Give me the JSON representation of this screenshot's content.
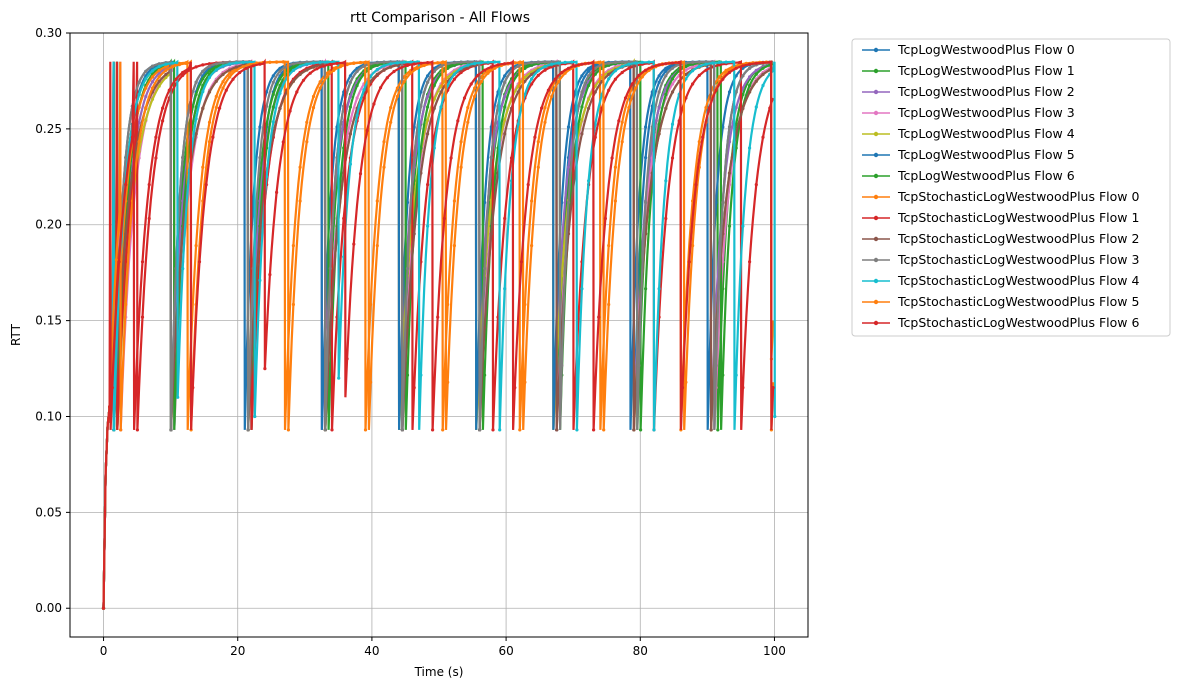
{
  "chart_data": {
    "type": "line",
    "title": "rtt Comparison - All Flows",
    "xlabel": "Time (s)",
    "ylabel": "RTT",
    "xlim": [
      -5,
      105
    ],
    "ylim": [
      -0.015,
      0.3
    ],
    "xticks": [
      0,
      20,
      40,
      60,
      80,
      100
    ],
    "yticks": [
      0.0,
      0.05,
      0.1,
      0.15,
      0.2,
      0.25,
      0.3
    ],
    "xtick_labels": [
      "0",
      "20",
      "40",
      "60",
      "80",
      "100"
    ],
    "ytick_labels": [
      "0.00",
      "0.05",
      "0.10",
      "0.15",
      "0.20",
      "0.25",
      "0.30"
    ],
    "grid": true,
    "legend_position": "outside-right",
    "rtt_min": 0.093,
    "rtt_max": 0.285,
    "series": [
      {
        "name": "TcpLogWestwoodPlus Flow 0",
        "color": "#1f77b4",
        "resets": [
          2,
          10.5,
          22,
          33,
          44.5,
          56,
          67.5,
          79,
          91
        ],
        "dips": [
          0.093,
          0.093,
          0.093,
          0.093,
          0.093,
          0.093,
          0.093,
          0.093,
          0.093
        ]
      },
      {
        "name": "TcpLogWestwoodPlus Flow 1",
        "color": "#2ca02c",
        "resets": [
          1.5,
          10,
          21.5,
          33,
          44.5,
          56,
          67.5,
          79.5,
          91.5
        ],
        "dips": [
          0.093,
          0.093,
          0.093,
          0.093,
          0.093,
          0.093,
          0.093,
          0.093,
          0.093
        ]
      },
      {
        "name": "TcpLogWestwoodPlus Flow 2",
        "color": "#9467bd",
        "resets": [
          2,
          10,
          21.5,
          32.5,
          44,
          55.5,
          67,
          79,
          90.5
        ],
        "dips": [
          0.093,
          0.093,
          0.093,
          0.093,
          0.093,
          0.093,
          0.093,
          0.093,
          0.093
        ]
      },
      {
        "name": "TcpLogWestwoodPlus Flow 3",
        "color": "#e377c2",
        "resets": [
          2.5,
          10.5,
          22,
          33,
          44.5,
          56,
          67.5,
          79,
          91
        ],
        "dips": [
          0.093,
          0.093,
          0.093,
          0.093,
          0.093,
          0.093,
          0.093,
          0.093,
          0.093
        ]
      },
      {
        "name": "TcpLogWestwoodPlus Flow 4",
        "color": "#bcbd22",
        "resets": [
          2,
          10,
          21.5,
          33,
          44,
          55.5,
          67,
          79,
          90.5
        ],
        "dips": [
          0.093,
          0.093,
          0.093,
          0.093,
          0.093,
          0.093,
          0.093,
          0.093,
          0.093
        ]
      },
      {
        "name": "TcpLogWestwoodPlus Flow 5",
        "color": "#1f77b4",
        "resets": [
          1.5,
          10,
          21,
          32.5,
          44,
          55.5,
          67,
          78.5,
          90
        ],
        "dips": [
          0.093,
          0.093,
          0.093,
          0.093,
          0.093,
          0.093,
          0.093,
          0.093,
          0.093
        ]
      },
      {
        "name": "TcpLogWestwoodPlus Flow 6",
        "color": "#2ca02c",
        "resets": [
          2,
          10.5,
          22,
          33.5,
          45,
          56.5,
          68,
          80,
          92
        ],
        "dips": [
          0.093,
          0.093,
          0.093,
          0.093,
          0.093,
          0.093,
          0.093,
          0.093,
          0.093
        ]
      },
      {
        "name": "TcpStochasticLogWestwoodPlus Flow 0",
        "color": "#ff7f0e",
        "resets": [
          1.5,
          12.5,
          27,
          39,
          50.5,
          62,
          74,
          86,
          99.5
        ],
        "dips": [
          0.093,
          0.093,
          0.093,
          0.093,
          0.093,
          0.093,
          0.093,
          0.093,
          0.13
        ]
      },
      {
        "name": "TcpStochasticLogWestwoodPlus Flow 1",
        "color": "#d62728",
        "resets": [
          2,
          5,
          22,
          34,
          46,
          58,
          70,
          82,
          95
        ],
        "dips": [
          0.093,
          0.093,
          0.093,
          0.093,
          0.093,
          0.093,
          0.093,
          0.093,
          0.093
        ]
      },
      {
        "name": "TcpStochasticLogWestwoodPlus Flow 2",
        "color": "#8c564b",
        "resets": [
          1.5,
          10,
          21.5,
          33,
          44.5,
          56,
          67.5,
          79,
          90.5
        ],
        "dips": [
          0.093,
          0.093,
          0.093,
          0.093,
          0.093,
          0.093,
          0.093,
          0.093,
          0.093
        ]
      },
      {
        "name": "TcpStochasticLogWestwoodPlus Flow 3",
        "color": "#7f7f7f",
        "resets": [
          1.5,
          10,
          21.5,
          33,
          44.5,
          56,
          68,
          79.5,
          91
        ],
        "dips": [
          0.093,
          0.093,
          0.093,
          0.093,
          0.093,
          0.093,
          0.093,
          0.093,
          0.093
        ]
      },
      {
        "name": "TcpStochasticLogWestwoodPlus Flow 4",
        "color": "#17becf",
        "resets": [
          1.5,
          11,
          22.5,
          35,
          47,
          59,
          70.5,
          82,
          94,
          100
        ],
        "dips": [
          0.093,
          0.11,
          0.1,
          0.12,
          0.093,
          0.093,
          0.093,
          0.093,
          0.093,
          0.1
        ]
      },
      {
        "name": "TcpStochasticLogWestwoodPlus Flow 5",
        "color": "#ff7f0e",
        "resets": [
          2.5,
          13,
          27.5,
          39.5,
          51,
          62.5,
          74.5,
          86.5,
          99.5
        ],
        "dips": [
          0.093,
          0.093,
          0.093,
          0.093,
          0.093,
          0.093,
          0.093,
          0.093,
          0.093
        ]
      },
      {
        "name": "TcpStochasticLogWestwoodPlus Flow 6",
        "color": "#d62728",
        "resets": [
          1,
          4.5,
          13,
          24,
          36,
          49,
          61,
          73,
          86,
          99.5
        ],
        "dips": [
          0.093,
          0.093,
          0.093,
          0.125,
          0.11,
          0.093,
          0.093,
          0.093,
          0.093,
          0.093
        ]
      }
    ]
  }
}
